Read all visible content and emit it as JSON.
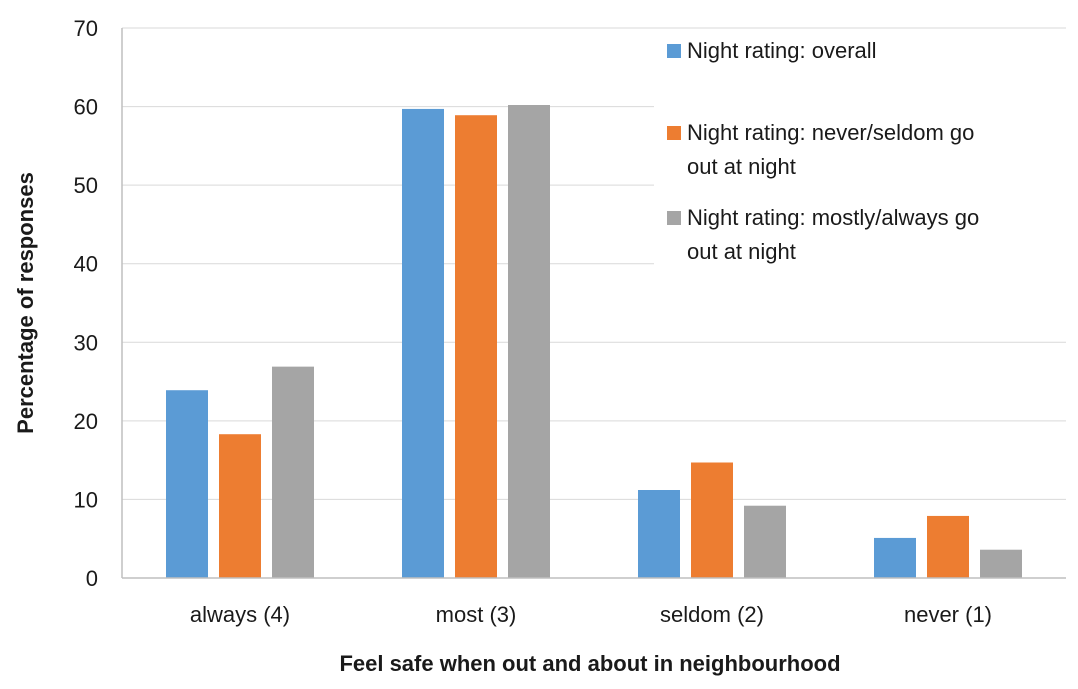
{
  "chart_data": {
    "type": "bar",
    "title": "",
    "xlabel": "Feel safe when out and about in neighbourhood",
    "ylabel": "Percentage of responses",
    "ylim": [
      0,
      70
    ],
    "yticks": [
      "0",
      "10",
      "20",
      "30",
      "40",
      "50",
      "60",
      "70"
    ],
    "grid": true,
    "legend_position": "top-right",
    "categories": [
      "always (4)",
      "most (3)",
      "seldom (2)",
      "never (1)"
    ],
    "series": [
      {
        "name": "Night rating: overall",
        "legend_lines": [
          "Night rating: overall"
        ],
        "color": "#5B9BD5",
        "values": [
          23.9,
          59.7,
          11.2,
          5.1
        ]
      },
      {
        "name": "Night rating: never/seldom go out at night",
        "legend_lines": [
          "Night rating: never/seldom go",
          "out at night"
        ],
        "color": "#ED7D31",
        "values": [
          18.3,
          58.9,
          14.7,
          7.9
        ]
      },
      {
        "name": "Night rating: mostly/always go out at night",
        "legend_lines": [
          "Night rating: mostly/always go",
          "out at night"
        ],
        "color": "#A5A5A5",
        "values": [
          26.9,
          60.2,
          9.2,
          3.6
        ]
      }
    ]
  }
}
